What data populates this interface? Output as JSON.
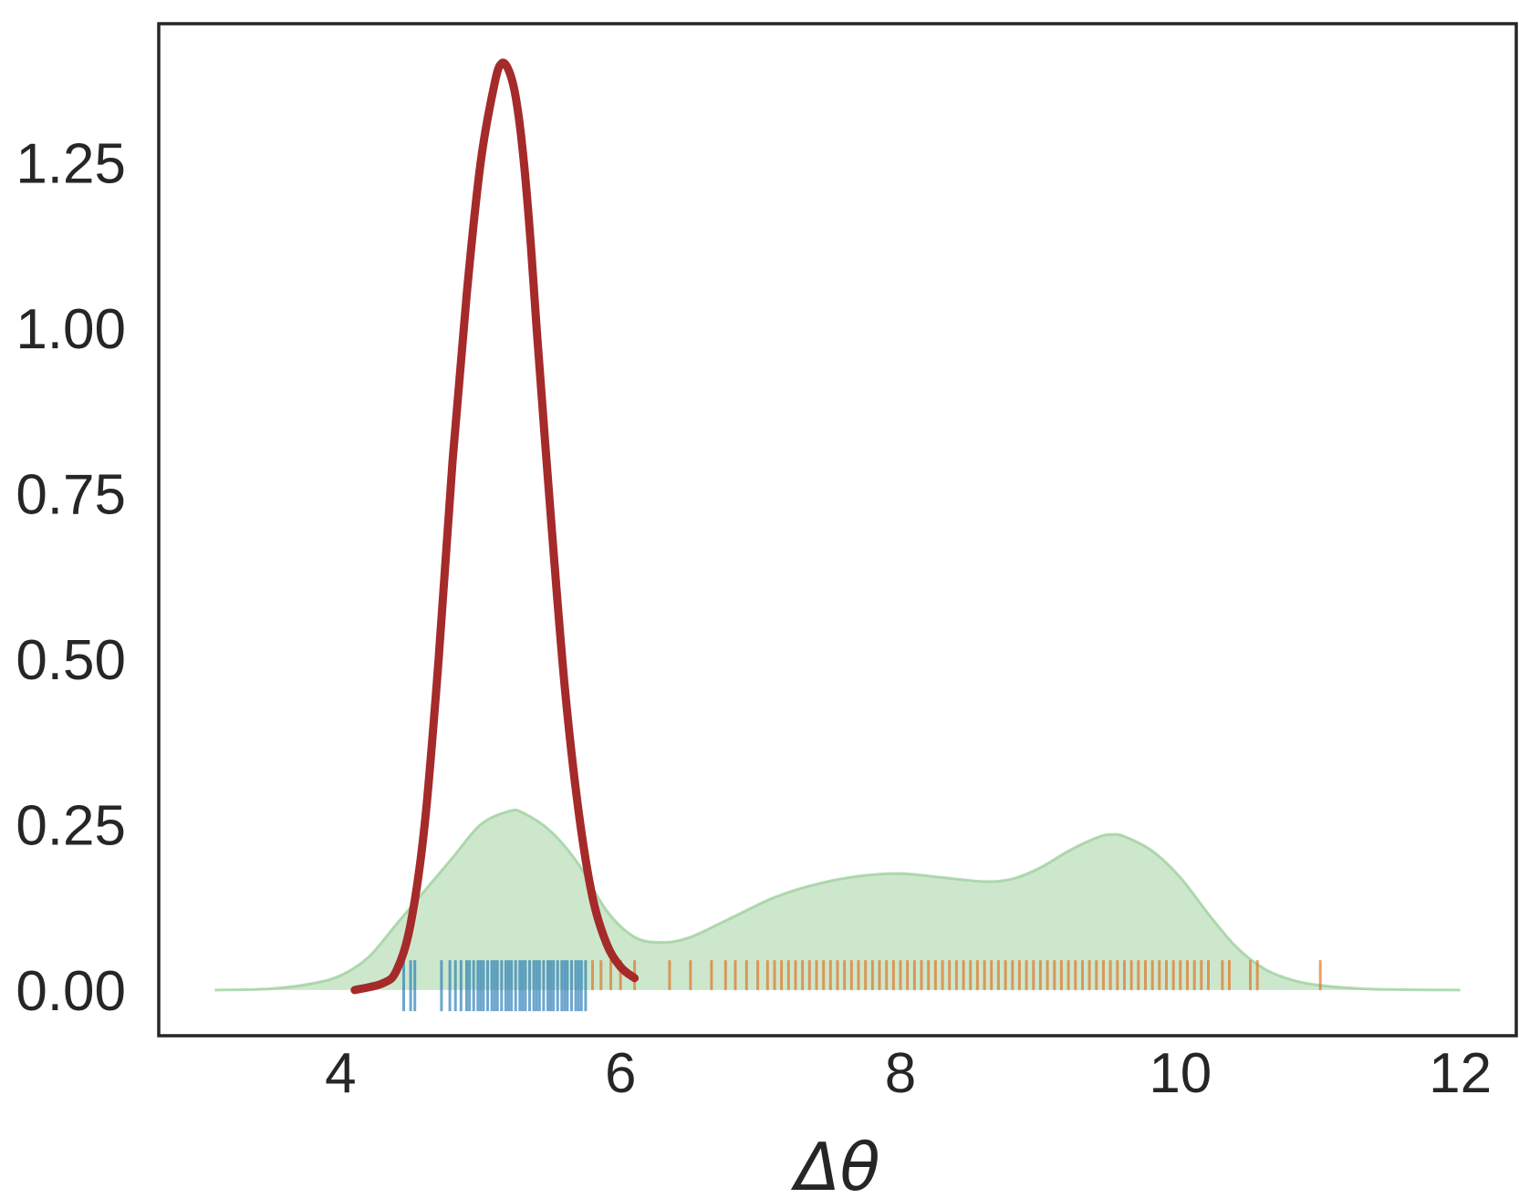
{
  "chart_data": {
    "type": "area",
    "title": "",
    "xlabel": "Δθ",
    "ylabel": "",
    "xlim": [
      2.7,
      12.4
    ],
    "ylim": [
      -0.069,
      1.46
    ],
    "x_ticks": [
      4,
      6,
      8,
      10,
      12
    ],
    "y_ticks": [
      0.0,
      0.25,
      0.5,
      0.75,
      1.0,
      1.25
    ],
    "x_tick_labels": [
      "4",
      "6",
      "8",
      "10",
      "12"
    ],
    "y_tick_labels": [
      "0.00",
      "0.25",
      "0.50",
      "0.75",
      "1.00",
      "1.25"
    ],
    "grid": false,
    "legend": "none",
    "series": [
      {
        "kind": "filled_density",
        "color": "#9fd19f",
        "x": [
          3.1,
          3.5,
          3.8,
          4.0,
          4.2,
          4.4,
          4.6,
          4.8,
          5.0,
          5.2,
          5.3,
          5.5,
          5.7,
          5.9,
          6.1,
          6.3,
          6.5,
          6.8,
          7.1,
          7.4,
          7.7,
          8.0,
          8.3,
          8.6,
          8.8,
          9.0,
          9.2,
          9.4,
          9.5,
          9.6,
          9.8,
          10.0,
          10.2,
          10.4,
          10.6,
          10.8,
          11.0,
          11.3,
          11.6,
          12.0
        ],
        "y": [
          0.0,
          0.002,
          0.01,
          0.022,
          0.05,
          0.1,
          0.15,
          0.2,
          0.25,
          0.27,
          0.268,
          0.24,
          0.19,
          0.12,
          0.08,
          0.072,
          0.08,
          0.11,
          0.14,
          0.16,
          0.172,
          0.176,
          0.17,
          0.164,
          0.168,
          0.185,
          0.21,
          0.23,
          0.235,
          0.232,
          0.21,
          0.17,
          0.115,
          0.065,
          0.032,
          0.015,
          0.007,
          0.002,
          0.0005,
          0.0
        ]
      },
      {
        "kind": "density_line",
        "color": "#a52a2a",
        "x": [
          4.1,
          4.3,
          4.4,
          4.5,
          4.6,
          4.7,
          4.8,
          4.9,
          5.0,
          5.1,
          5.15,
          5.2,
          5.25,
          5.3,
          5.35,
          5.4,
          5.5,
          5.6,
          5.7,
          5.8,
          5.9,
          6.0,
          6.1
        ],
        "y": [
          0.0,
          0.01,
          0.03,
          0.1,
          0.25,
          0.5,
          0.8,
          1.05,
          1.25,
          1.37,
          1.4,
          1.39,
          1.35,
          1.27,
          1.15,
          1.0,
          0.72,
          0.46,
          0.27,
          0.14,
          0.07,
          0.035,
          0.018
        ]
      }
    ],
    "rug": [
      {
        "color": "#1f77b4",
        "y_range": [
          -0.032,
          0.045
        ],
        "x": [
          4.45,
          4.5,
          4.53,
          4.72,
          4.78,
          4.82,
          4.86,
          4.9,
          4.92,
          4.95,
          4.98,
          5.0,
          5.02,
          5.05,
          5.08,
          5.1,
          5.12,
          5.15,
          5.18,
          5.2,
          5.22,
          5.25,
          5.28,
          5.3,
          5.32,
          5.35,
          5.38,
          5.4,
          5.42,
          5.45,
          5.48,
          5.5,
          5.52,
          5.55,
          5.58,
          5.6,
          5.62,
          5.65,
          5.68,
          5.7,
          5.72,
          5.75
        ]
      },
      {
        "color": "#e06c18",
        "y_range": [
          0.0,
          0.045
        ],
        "x": [
          5.8,
          5.86,
          5.93,
          6.0,
          6.1,
          6.35,
          6.5,
          6.65,
          6.75,
          6.82,
          6.9,
          6.98,
          7.05,
          7.1,
          7.15,
          7.2,
          7.25,
          7.3,
          7.35,
          7.4,
          7.45,
          7.5,
          7.55,
          7.6,
          7.65,
          7.7,
          7.75,
          7.8,
          7.85,
          7.9,
          7.95,
          8.0,
          8.05,
          8.1,
          8.15,
          8.2,
          8.25,
          8.3,
          8.35,
          8.4,
          8.45,
          8.5,
          8.55,
          8.6,
          8.65,
          8.7,
          8.75,
          8.8,
          8.85,
          8.9,
          8.95,
          9.0,
          9.05,
          9.1,
          9.15,
          9.2,
          9.25,
          9.3,
          9.35,
          9.4,
          9.45,
          9.5,
          9.55,
          9.6,
          9.65,
          9.7,
          9.75,
          9.8,
          9.85,
          9.9,
          9.95,
          10.0,
          10.05,
          10.1,
          10.15,
          10.2,
          10.3,
          10.35,
          10.5,
          10.55,
          11.0
        ]
      }
    ]
  }
}
